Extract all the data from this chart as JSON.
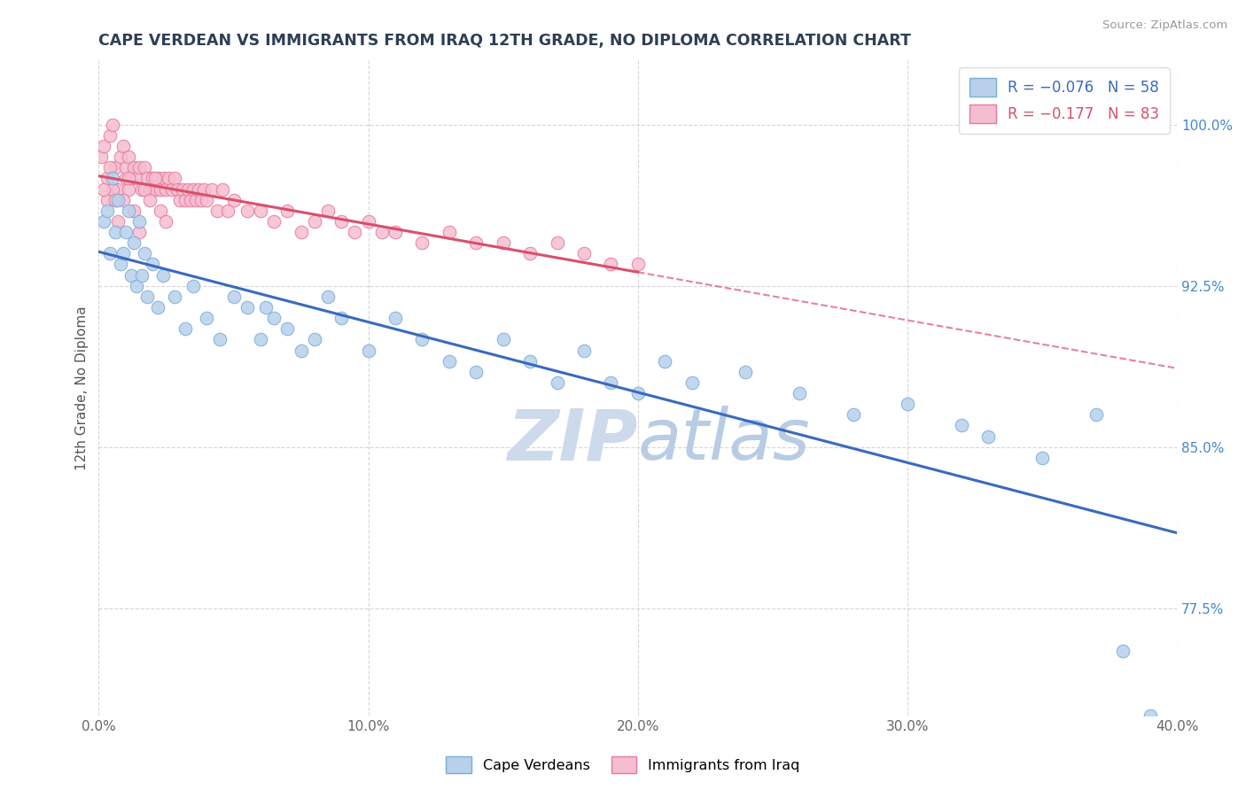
{
  "title": "CAPE VERDEAN VS IMMIGRANTS FROM IRAQ 12TH GRADE, NO DIPLOMA CORRELATION CHART",
  "source": "Source: ZipAtlas.com",
  "ylabel": "12th Grade, No Diploma",
  "x_tick_labels": [
    "0.0%",
    "10.0%",
    "20.0%",
    "30.0%",
    "40.0%"
  ],
  "x_tick_values": [
    0.0,
    10.0,
    20.0,
    30.0,
    40.0
  ],
  "y_tick_labels": [
    "77.5%",
    "85.0%",
    "92.5%",
    "100.0%"
  ],
  "y_tick_values": [
    77.5,
    85.0,
    92.5,
    100.0
  ],
  "xlim": [
    0.0,
    40.0
  ],
  "ylim": [
    72.5,
    103.0
  ],
  "legend_blue_label": "R = −0.076   N = 58",
  "legend_pink_label": "R = −0.177   N = 83",
  "legend_blue_color": "#b8d0eb",
  "legend_pink_color": "#f5bdd0",
  "dot_blue_color": "#b8d0eb",
  "dot_pink_color": "#f5bdd0",
  "dot_edge_blue": "#7aadda",
  "dot_edge_pink": "#e87a9a",
  "trend_blue_color": "#3a6abf",
  "trend_pink_color": "#d9506a",
  "background_color": "#ffffff",
  "title_color": "#2e3f55",
  "source_color": "#999999",
  "watermark_color": "#cddaeb",
  "blue_x": [
    0.2,
    0.3,
    0.4,
    0.5,
    0.6,
    0.7,
    0.8,
    0.9,
    1.0,
    1.1,
    1.2,
    1.3,
    1.4,
    1.5,
    1.6,
    1.7,
    1.8,
    2.0,
    2.2,
    2.4,
    2.8,
    3.2,
    3.5,
    4.0,
    4.5,
    5.0,
    5.5,
    6.0,
    6.5,
    7.0,
    7.5,
    8.0,
    9.0,
    10.0,
    11.0,
    12.0,
    13.0,
    14.0,
    15.0,
    16.0,
    17.0,
    18.0,
    19.0,
    20.0,
    21.0,
    22.0,
    24.0,
    26.0,
    28.0,
    30.0,
    32.0,
    33.0,
    35.0,
    37.0,
    38.0,
    39.0,
    6.2,
    8.5
  ],
  "blue_y": [
    95.5,
    96.0,
    94.0,
    97.5,
    95.0,
    96.5,
    93.5,
    94.0,
    95.0,
    96.0,
    93.0,
    94.5,
    92.5,
    95.5,
    93.0,
    94.0,
    92.0,
    93.5,
    91.5,
    93.0,
    92.0,
    90.5,
    92.5,
    91.0,
    90.0,
    92.0,
    91.5,
    90.0,
    91.0,
    90.5,
    89.5,
    90.0,
    91.0,
    89.5,
    91.0,
    90.0,
    89.0,
    88.5,
    90.0,
    89.0,
    88.0,
    89.5,
    88.0,
    87.5,
    89.0,
    88.0,
    88.5,
    87.5,
    86.5,
    87.0,
    86.0,
    85.5,
    84.5,
    86.5,
    75.5,
    72.5,
    91.5,
    92.0
  ],
  "pink_x": [
    0.1,
    0.2,
    0.3,
    0.4,
    0.5,
    0.6,
    0.7,
    0.8,
    0.9,
    1.0,
    1.0,
    1.1,
    1.1,
    1.2,
    1.3,
    1.4,
    1.5,
    1.6,
    1.7,
    1.8,
    1.9,
    2.0,
    2.1,
    2.2,
    2.3,
    2.4,
    2.5,
    2.6,
    2.7,
    2.8,
    2.9,
    3.0,
    3.1,
    3.2,
    3.3,
    3.4,
    3.5,
    3.6,
    3.7,
    3.8,
    3.9,
    4.0,
    4.2,
    4.4,
    4.6,
    4.8,
    5.0,
    5.5,
    6.0,
    6.5,
    7.0,
    7.5,
    8.0,
    8.5,
    9.0,
    9.5,
    10.0,
    10.5,
    11.0,
    12.0,
    13.0,
    14.0,
    15.0,
    16.0,
    17.0,
    18.0,
    19.0,
    20.0,
    0.3,
    0.5,
    0.7,
    0.9,
    1.1,
    1.3,
    1.5,
    1.7,
    1.9,
    2.1,
    2.3,
    2.5,
    0.2,
    0.4,
    0.6
  ],
  "pink_y": [
    98.5,
    99.0,
    97.5,
    99.5,
    100.0,
    98.0,
    97.0,
    98.5,
    99.0,
    97.5,
    98.0,
    98.5,
    97.0,
    97.5,
    98.0,
    97.5,
    98.0,
    97.0,
    98.0,
    97.5,
    97.0,
    97.5,
    97.0,
    97.5,
    97.0,
    97.5,
    97.0,
    97.5,
    97.0,
    97.5,
    97.0,
    96.5,
    97.0,
    96.5,
    97.0,
    96.5,
    97.0,
    96.5,
    97.0,
    96.5,
    97.0,
    96.5,
    97.0,
    96.0,
    97.0,
    96.0,
    96.5,
    96.0,
    96.0,
    95.5,
    96.0,
    95.0,
    95.5,
    96.0,
    95.5,
    95.0,
    95.5,
    95.0,
    95.0,
    94.5,
    95.0,
    94.5,
    94.5,
    94.0,
    94.5,
    94.0,
    93.5,
    93.5,
    96.5,
    97.0,
    95.5,
    96.5,
    97.5,
    96.0,
    95.0,
    97.0,
    96.5,
    97.5,
    96.0,
    95.5,
    97.0,
    98.0,
    96.5
  ]
}
